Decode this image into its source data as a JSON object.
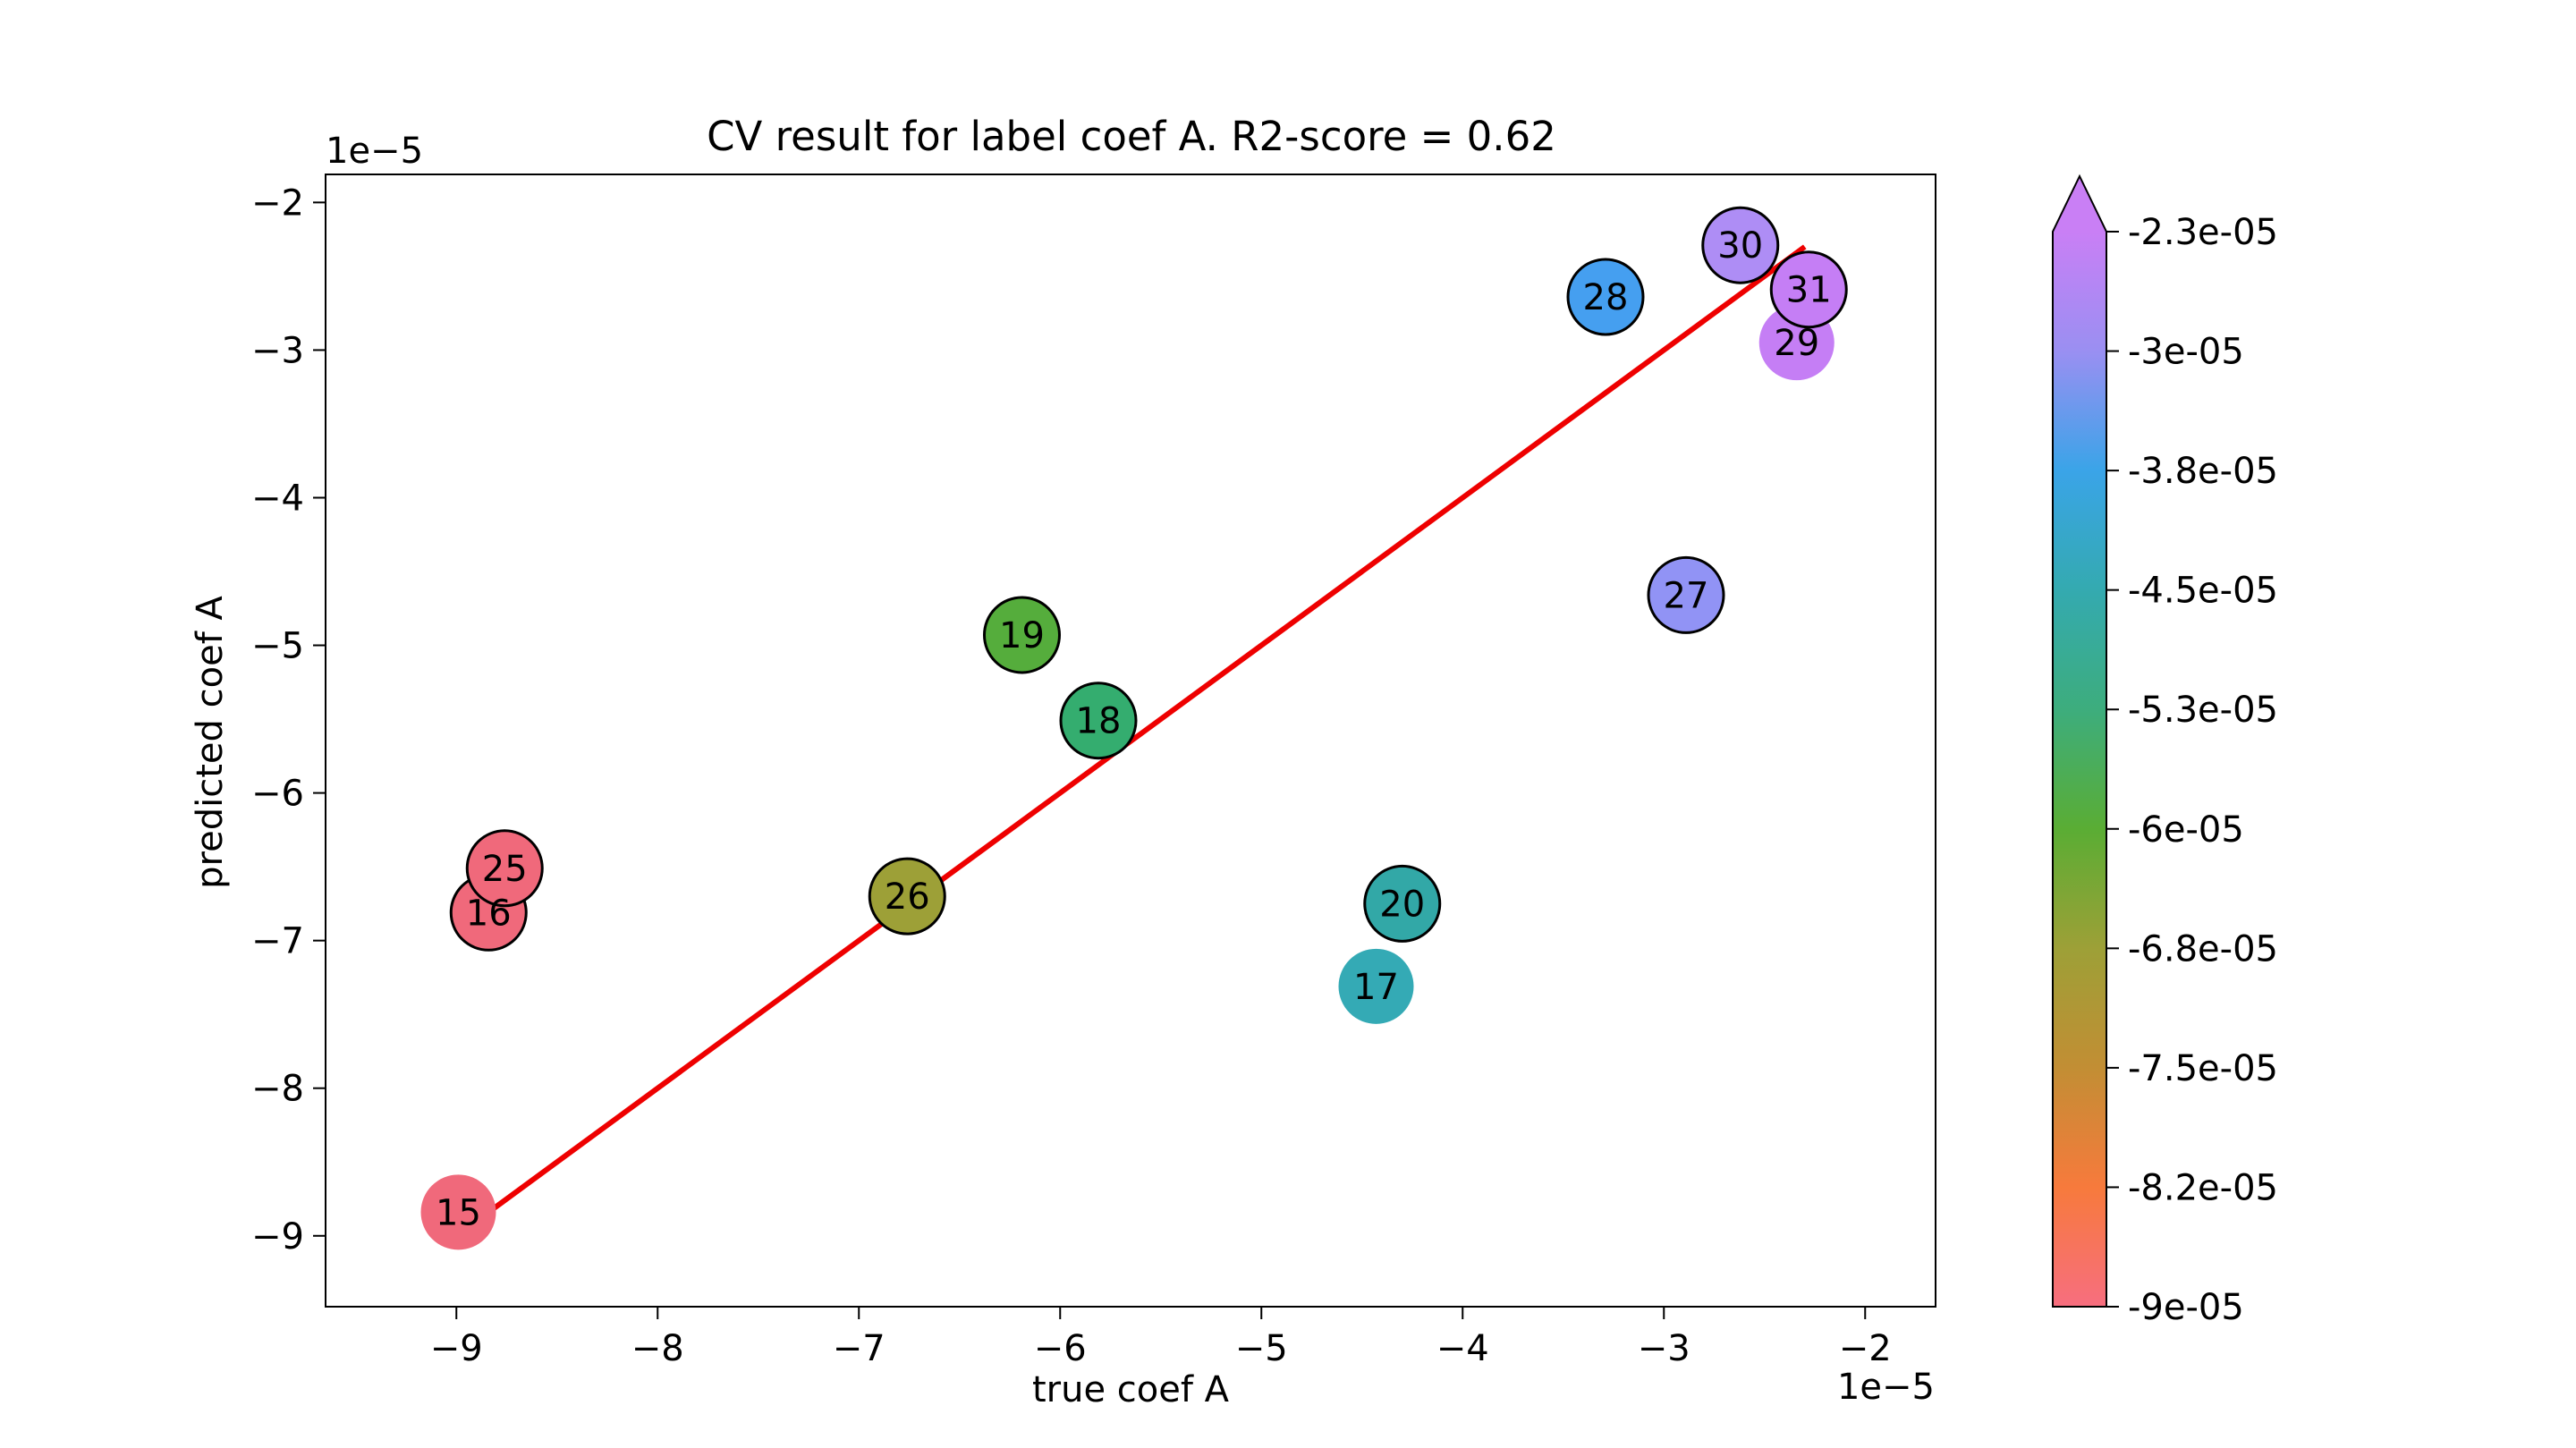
{
  "chart_data": {
    "type": "scatter",
    "title": "CV result for label coef A. R2-score = 0.62",
    "xlabel": "true coef A",
    "ylabel": "predicted coef A",
    "x_offset_label": "1e−5",
    "y_offset_label": "1e−5",
    "xlim": [
      -9.65,
      -1.65
    ],
    "ylim": [
      -9.48,
      -1.81
    ],
    "x_ticks": [
      -9,
      -8,
      -7,
      -6,
      -5,
      -4,
      -3,
      -2
    ],
    "x_tick_labels": [
      "−9",
      "−8",
      "−7",
      "−6",
      "−5",
      "−4",
      "−3",
      "−2"
    ],
    "y_ticks": [
      -2,
      -3,
      -4,
      -5,
      -6,
      -7,
      -8,
      -9
    ],
    "y_tick_labels": [
      "−2",
      "−3",
      "−4",
      "−5",
      "−6",
      "−7",
      "−8",
      "−9"
    ],
    "points": [
      {
        "label": "15",
        "x": -8.99,
        "y": -8.84,
        "color": "#f0697b",
        "outlined": false
      },
      {
        "label": "16",
        "x": -8.84,
        "y": -6.81,
        "color": "#f0697b",
        "outlined": true
      },
      {
        "label": "25",
        "x": -8.76,
        "y": -6.51,
        "color": "#f0697b",
        "outlined": true
      },
      {
        "label": "26",
        "x": -6.76,
        "y": -6.7,
        "color": "#9da037",
        "outlined": true
      },
      {
        "label": "19",
        "x": -6.19,
        "y": -4.93,
        "color": "#55ad3c",
        "outlined": true
      },
      {
        "label": "18",
        "x": -5.81,
        "y": -5.51,
        "color": "#34ad6f",
        "outlined": true
      },
      {
        "label": "20",
        "x": -4.3,
        "y": -6.75,
        "color": "#32a8a7",
        "outlined": true
      },
      {
        "label": "17",
        "x": -4.43,
        "y": -7.31,
        "color": "#34aab5",
        "outlined": false
      },
      {
        "label": "28",
        "x": -3.29,
        "y": -2.64,
        "color": "#459ff0",
        "outlined": true
      },
      {
        "label": "27",
        "x": -2.89,
        "y": -4.66,
        "color": "#9193f5",
        "outlined": true
      },
      {
        "label": "30",
        "x": -2.62,
        "y": -2.29,
        "color": "#ae8df5",
        "outlined": true
      },
      {
        "label": "29",
        "x": -2.34,
        "y": -2.95,
        "color": "#c57ef5",
        "outlined": false
      },
      {
        "label": "31",
        "x": -2.28,
        "y": -2.59,
        "color": "#c57ef5",
        "outlined": true
      }
    ],
    "fit_line": {
      "x": [
        -9.0,
        -2.3
      ],
      "y": [
        -9.0,
        -2.3
      ],
      "color": "#ee0000"
    },
    "colorbar": {
      "tick_labels": [
        "-2.3e-05",
        "-3e-05",
        "-3.8e-05",
        "-4.5e-05",
        "-5.3e-05",
        "-6e-05",
        "-6.8e-05",
        "-7.5e-05",
        "-8.2e-05",
        "-9e-05"
      ],
      "stops": [
        "#f76e7f",
        "#f77a3c",
        "#c28e34",
        "#9da037",
        "#5aad34",
        "#3dad7d",
        "#34aab0",
        "#3aa4e8",
        "#9a8ff2",
        "#c97ff5"
      ]
    }
  }
}
